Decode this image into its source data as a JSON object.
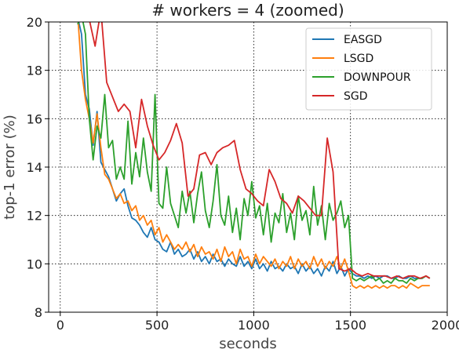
{
  "chart_data": {
    "type": "line",
    "title": "# workers = 4 (zoomed)",
    "xlabel": "seconds",
    "ylabel": "top-1 error (%)",
    "xlim": [
      -60,
      2000
    ],
    "ylim": [
      8,
      20
    ],
    "xticks": [
      0,
      500,
      1000,
      1500,
      2000
    ],
    "yticks": [
      8,
      10,
      12,
      14,
      16,
      18,
      20
    ],
    "grid": true,
    "legend_position": "top-right",
    "series": [
      {
        "name": "EASGD",
        "color": "#1f77b4",
        "x": [
          90,
          110,
          130,
          150,
          170,
          190,
          210,
          230,
          250,
          270,
          290,
          310,
          330,
          350,
          370,
          390,
          410,
          430,
          450,
          470,
          490,
          510,
          530,
          550,
          570,
          590,
          610,
          630,
          650,
          670,
          690,
          710,
          730,
          750,
          770,
          790,
          810,
          830,
          850,
          870,
          890,
          910,
          930,
          950,
          970,
          990,
          1010,
          1030,
          1050,
          1070,
          1090,
          1110,
          1130,
          1150,
          1170,
          1190,
          1210,
          1230,
          1250,
          1270,
          1290,
          1310,
          1330,
          1350,
          1370,
          1390,
          1410,
          1430,
          1450,
          1470,
          1490,
          1510,
          1530,
          1550,
          1570,
          1590,
          1610,
          1630,
          1650,
          1670,
          1690,
          1710,
          1730,
          1750,
          1770,
          1790,
          1810,
          1830,
          1850,
          1870,
          1890,
          1910
        ],
        "y": [
          20.2,
          19.5,
          17.0,
          16.4,
          14.9,
          16.3,
          14.2,
          13.9,
          13.6,
          13.1,
          12.6,
          12.9,
          13.1,
          12.4,
          11.9,
          11.8,
          11.6,
          11.3,
          11.1,
          11.5,
          11.0,
          10.9,
          10.6,
          10.5,
          10.9,
          10.4,
          10.6,
          10.3,
          10.4,
          10.6,
          10.2,
          10.5,
          10.1,
          10.3,
          10.0,
          10.4,
          10.1,
          10.2,
          9.9,
          10.2,
          10.0,
          9.9,
          10.3,
          9.9,
          10.1,
          9.8,
          10.2,
          9.8,
          10.0,
          9.7,
          10.1,
          9.8,
          9.9,
          9.7,
          10.0,
          9.8,
          9.9,
          9.6,
          10.0,
          9.7,
          9.9,
          9.6,
          9.8,
          9.5,
          9.9,
          9.7,
          10.1,
          9.6,
          9.9,
          9.5,
          9.8,
          9.6,
          9.5,
          9.5,
          9.4,
          9.5,
          9.4,
          9.5,
          9.4,
          9.5,
          9.5,
          9.4,
          9.4,
          9.5,
          9.4,
          9.4,
          9.5,
          9.4,
          9.4,
          9.4,
          9.5,
          9.4
        ]
      },
      {
        "name": "LSGD",
        "color": "#ff7f0e",
        "x": [
          90,
          110,
          130,
          150,
          170,
          190,
          210,
          230,
          250,
          270,
          290,
          310,
          330,
          350,
          370,
          390,
          410,
          430,
          450,
          470,
          490,
          510,
          530,
          550,
          570,
          590,
          610,
          630,
          650,
          670,
          690,
          710,
          730,
          750,
          770,
          790,
          810,
          830,
          850,
          870,
          890,
          910,
          930,
          950,
          970,
          990,
          1010,
          1030,
          1050,
          1070,
          1090,
          1110,
          1130,
          1150,
          1170,
          1190,
          1210,
          1230,
          1250,
          1270,
          1290,
          1310,
          1330,
          1350,
          1370,
          1390,
          1410,
          1430,
          1450,
          1470,
          1490,
          1510,
          1530,
          1550,
          1570,
          1590,
          1610,
          1630,
          1650,
          1670,
          1690,
          1710,
          1730,
          1750,
          1770,
          1790,
          1810,
          1830,
          1850,
          1870,
          1890,
          1910
        ],
        "y": [
          20.3,
          18.0,
          16.8,
          16.0,
          15.0,
          16.2,
          14.8,
          13.7,
          13.5,
          13.1,
          12.7,
          12.9,
          12.5,
          12.6,
          12.2,
          12.4,
          11.8,
          12.0,
          11.6,
          11.8,
          11.2,
          11.5,
          10.9,
          11.2,
          10.9,
          10.6,
          10.8,
          10.6,
          10.9,
          10.5,
          10.8,
          10.3,
          10.7,
          10.4,
          10.5,
          10.2,
          10.6,
          10.1,
          10.7,
          10.3,
          10.5,
          10.0,
          10.6,
          10.2,
          10.3,
          9.9,
          10.4,
          10.0,
          10.3,
          10.1,
          9.9,
          10.2,
          9.8,
          10.1,
          9.9,
          10.3,
          9.8,
          10.2,
          9.9,
          10.1,
          9.8,
          10.3,
          9.9,
          10.2,
          9.8,
          10.1,
          9.9,
          10.3,
          9.8,
          10.2,
          9.7,
          9.1,
          9.0,
          9.1,
          9.0,
          9.1,
          9.0,
          9.1,
          9.0,
          9.1,
          9.0,
          9.1,
          9.1,
          9.0,
          9.1,
          9.0,
          9.2,
          9.1,
          9.0,
          9.1,
          9.1,
          9.1
        ]
      },
      {
        "name": "DOWNPOUR",
        "color": "#2ca02c",
        "x": [
          90,
          110,
          130,
          150,
          170,
          190,
          210,
          230,
          250,
          270,
          290,
          310,
          330,
          350,
          370,
          390,
          410,
          430,
          450,
          470,
          490,
          510,
          530,
          550,
          570,
          590,
          610,
          630,
          650,
          670,
          690,
          710,
          730,
          750,
          770,
          790,
          810,
          830,
          850,
          870,
          890,
          910,
          930,
          950,
          970,
          990,
          1010,
          1030,
          1050,
          1070,
          1090,
          1110,
          1130,
          1150,
          1170,
          1190,
          1210,
          1230,
          1250,
          1270,
          1290,
          1310,
          1330,
          1350,
          1370,
          1390,
          1410,
          1430,
          1450,
          1470,
          1490,
          1510,
          1530,
          1550,
          1570,
          1590,
          1610,
          1630,
          1650,
          1670,
          1690,
          1710,
          1730,
          1750,
          1770,
          1790,
          1810,
          1830,
          1850,
          1870,
          1890,
          1910
        ],
        "y": [
          19.9,
          20.3,
          19.5,
          16.0,
          14.3,
          15.7,
          15.2,
          17.0,
          14.8,
          15.1,
          13.5,
          14.0,
          13.5,
          15.9,
          13.3,
          14.6,
          13.6,
          15.2,
          13.8,
          13.0,
          17.0,
          12.5,
          12.3,
          14.0,
          12.5,
          12.0,
          11.5,
          13.0,
          12.1,
          13.0,
          11.7,
          12.9,
          13.8,
          12.2,
          11.5,
          12.6,
          14.1,
          12.0,
          11.6,
          12.8,
          11.3,
          12.3,
          11.0,
          12.7,
          12.0,
          13.4,
          11.9,
          12.4,
          11.2,
          12.5,
          10.9,
          12.1,
          11.7,
          12.9,
          11.3,
          12.1,
          11.0,
          12.8,
          11.8,
          12.2,
          11.2,
          13.2,
          11.6,
          12.4,
          11.0,
          12.5,
          11.8,
          12.1,
          12.6,
          11.5,
          12.0,
          9.4,
          9.3,
          9.4,
          9.3,
          9.4,
          9.5,
          9.3,
          9.4,
          9.2,
          9.3,
          9.2,
          9.4,
          9.3,
          9.3,
          9.2,
          9.4,
          9.3,
          9.4,
          9.4,
          9.5,
          9.4
        ]
      },
      {
        "name": "SGD",
        "color": "#d62728",
        "x": [
          90,
          120,
          150,
          180,
          210,
          240,
          270,
          300,
          330,
          360,
          390,
          420,
          450,
          480,
          510,
          540,
          570,
          600,
          630,
          660,
          690,
          720,
          750,
          780,
          810,
          840,
          870,
          900,
          930,
          960,
          990,
          1020,
          1050,
          1080,
          1110,
          1140,
          1170,
          1200,
          1230,
          1260,
          1290,
          1320,
          1350,
          1380,
          1410,
          1440,
          1470,
          1500,
          1530,
          1560,
          1590,
          1620,
          1650,
          1680,
          1710,
          1740,
          1770,
          1800,
          1830,
          1860,
          1890,
          1910
        ],
        "y": [
          20.4,
          20.3,
          20.1,
          19.0,
          20.5,
          17.5,
          16.9,
          16.3,
          16.6,
          16.3,
          14.8,
          16.8,
          15.7,
          14.9,
          14.3,
          14.6,
          15.1,
          15.8,
          15.0,
          12.8,
          13.1,
          14.5,
          14.6,
          14.1,
          14.6,
          14.8,
          14.9,
          15.1,
          13.9,
          13.1,
          12.9,
          12.6,
          12.4,
          13.9,
          13.4,
          12.7,
          12.5,
          12.1,
          12.8,
          12.6,
          12.3,
          12.0,
          12.0,
          15.2,
          13.8,
          9.8,
          9.7,
          9.8,
          9.6,
          9.5,
          9.6,
          9.5,
          9.5,
          9.5,
          9.4,
          9.5,
          9.4,
          9.5,
          9.5,
          9.4,
          9.5,
          9.4
        ]
      }
    ]
  }
}
